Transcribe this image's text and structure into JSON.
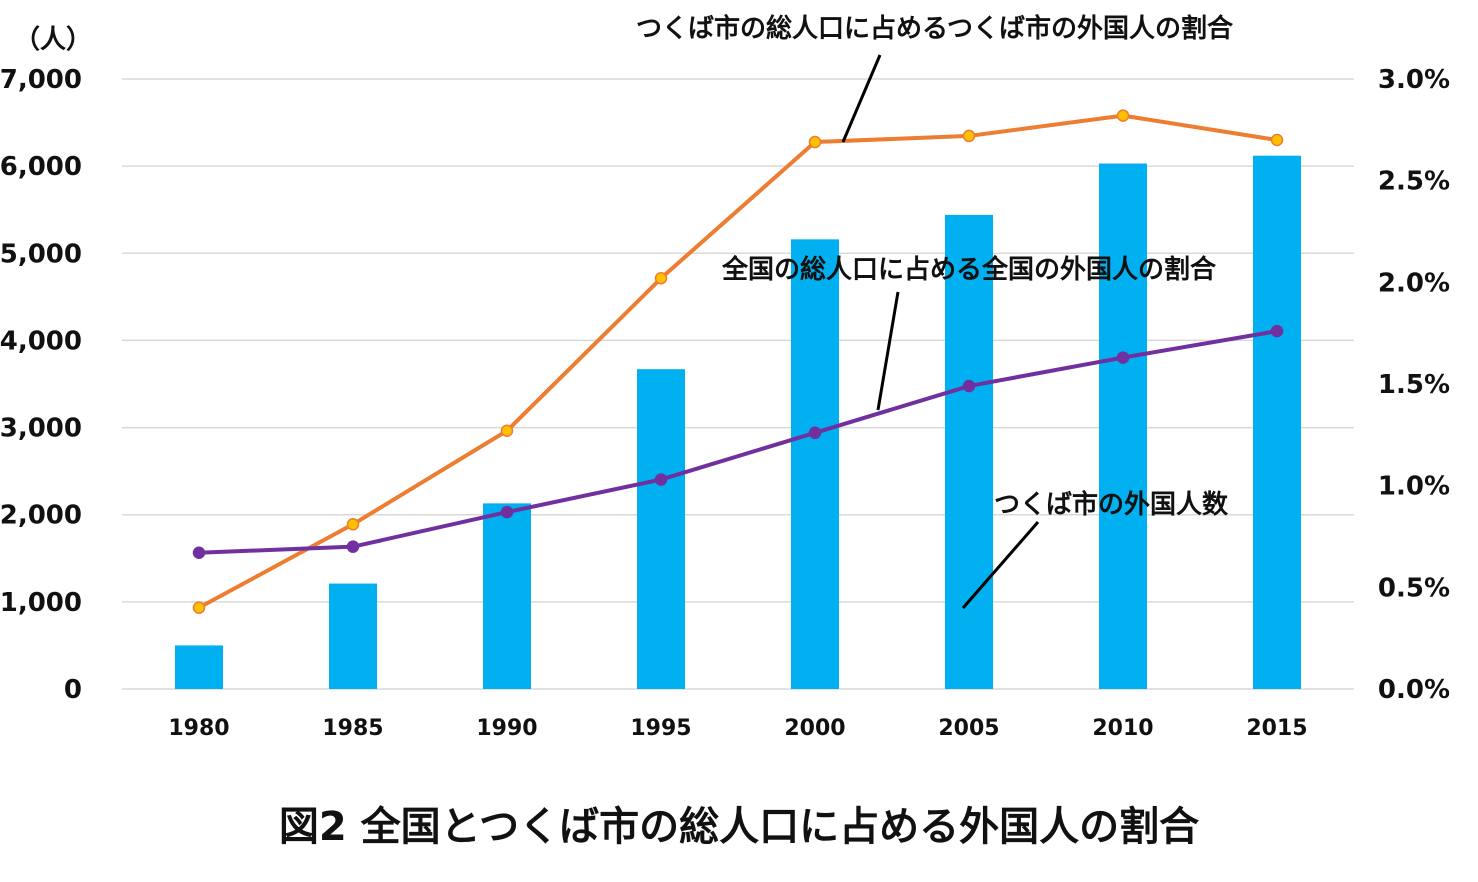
{
  "chart_data": {
    "type": "bar+line",
    "title": "図2 全国とつくば市の総人口に占める外国人の割合",
    "y_left_unit": "（人）",
    "categories": [
      "1980",
      "1985",
      "1990",
      "1995",
      "2000",
      "2005",
      "2010",
      "2015"
    ],
    "y_left_ticks": [
      "0",
      "1,000",
      "2,000",
      "3,000",
      "4,000",
      "5,000",
      "6,000",
      "7,000"
    ],
    "y_right_ticks": [
      "0.0%",
      "0.5%",
      "1.0%",
      "1.5%",
      "2.0%",
      "2.5%",
      "3.0%"
    ],
    "ylim_left": [
      0,
      7000
    ],
    "ylim_right": [
      0,
      3.0
    ],
    "grid": true,
    "series": [
      {
        "name": "つくば市の外国人数",
        "type": "bar",
        "axis": "left",
        "color": "#00b0f0",
        "values": [
          500,
          1210,
          2130,
          3670,
          5160,
          5440,
          6030,
          6120
        ]
      },
      {
        "name": "つくば市の総人口に占めるつくば市の外国人の割合",
        "type": "line",
        "axis": "right",
        "color": "#ed7d31",
        "marker_color": "#ffc000",
        "values": [
          0.4,
          0.81,
          1.27,
          2.02,
          2.69,
          2.72,
          2.82,
          2.7
        ]
      },
      {
        "name": "全国の総人口に占める全国の外国人の割合",
        "type": "line",
        "axis": "right",
        "color": "#7030a0",
        "marker_color": "#7030a0",
        "values": [
          0.67,
          0.7,
          0.87,
          1.03,
          1.26,
          1.49,
          1.63,
          1.76
        ]
      }
    ]
  }
}
